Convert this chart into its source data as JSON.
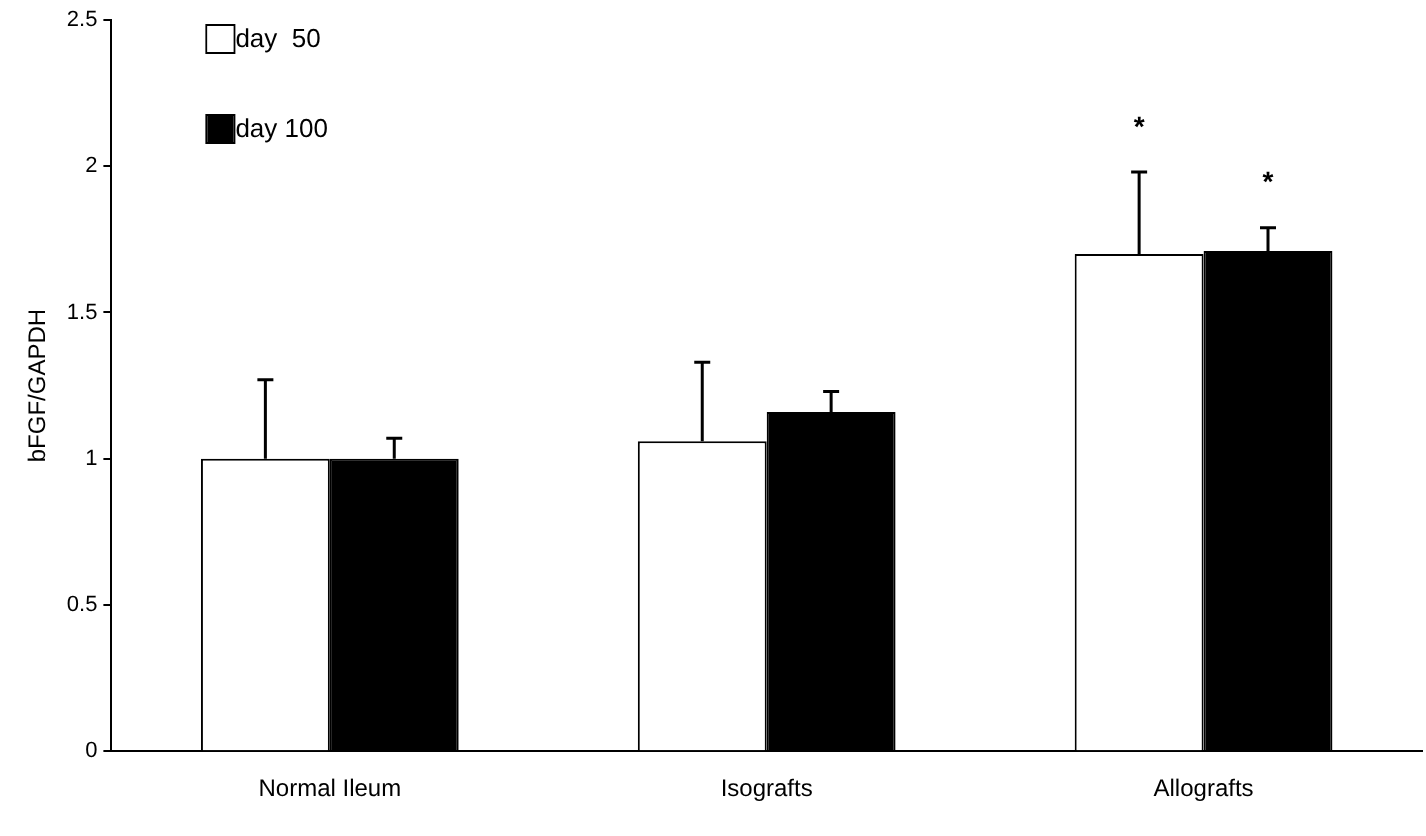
{
  "chart_data": {
    "type": "bar",
    "ylabel": "bFGF/GAPDH",
    "categories": [
      "Normal Ileum",
      "Isografts",
      "Allografts"
    ],
    "series": [
      {
        "name": "day  50",
        "color": "#ffffff",
        "values": [
          1.0,
          1.06,
          1.7
        ],
        "errors": [
          0.27,
          0.27,
          0.28
        ]
      },
      {
        "name": "day 100",
        "color": "#000000",
        "values": [
          1.0,
          1.16,
          1.71
        ],
        "errors": [
          0.07,
          0.07,
          0.08
        ]
      }
    ],
    "ylim": [
      0,
      2.5
    ],
    "yticks": [
      0,
      0.5,
      1,
      1.5,
      2,
      2.5
    ],
    "grid": false,
    "legend": "top left",
    "annotations": [
      "*",
      "*"
    ]
  }
}
